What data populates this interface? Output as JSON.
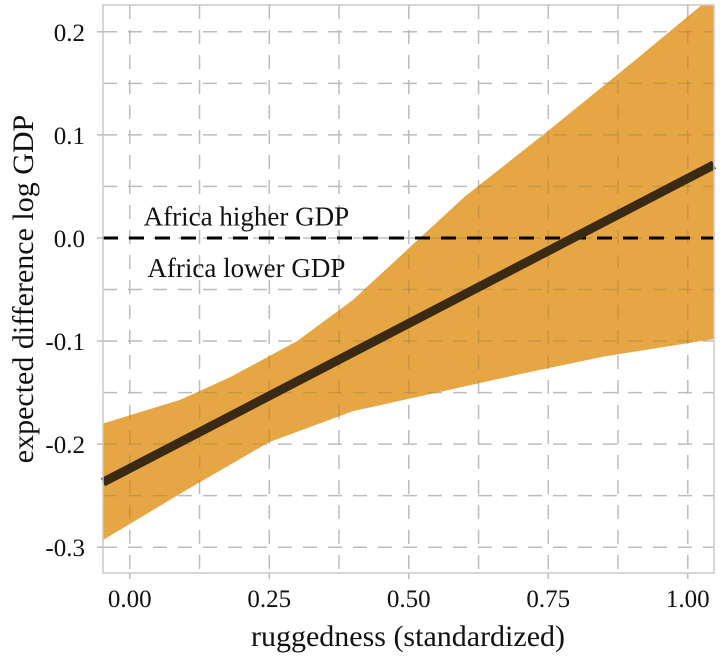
{
  "chart_data": {
    "type": "area",
    "title": "",
    "xlabel": "ruggedness (standardized)",
    "ylabel": "expected difference log GDP",
    "xlim": [
      -0.048,
      1.047
    ],
    "ylim": [
      -0.325,
      0.226
    ],
    "xticks": [
      0,
      0.25,
      0.5,
      0.75,
      1.0
    ],
    "xtick_labels": [
      "0.00",
      "0.25",
      "0.50",
      "0.75",
      "1.00"
    ],
    "yticks": [
      0.2,
      0.1,
      0.0,
      -0.1,
      -0.2,
      -0.3
    ],
    "ytick_labels": [
      "0.2",
      "0.1",
      "0.0",
      "-0.1",
      "-0.2",
      "-0.3"
    ],
    "grid": true,
    "series": [
      {
        "name": "mean",
        "type": "line",
        "color": "#3a2a14",
        "x": [
          -0.048,
          1.047
        ],
        "y": [
          -0.237,
          0.071
        ]
      },
      {
        "name": "interval",
        "type": "band",
        "color": "#e5a13a",
        "upper": {
          "x": [
            -0.048,
            0.09,
            0.18,
            0.3,
            0.4,
            0.5,
            0.6,
            0.75,
            0.9,
            1.025,
            1.047
          ],
          "y": [
            -0.18,
            -0.157,
            -0.135,
            -0.1,
            -0.06,
            -0.01,
            0.04,
            0.104,
            0.17,
            0.226,
            0.226
          ]
        },
        "lower": {
          "x": [
            -0.048,
            0.1,
            0.25,
            0.4,
            0.55,
            0.7,
            0.85,
            1.047
          ],
          "y": [
            -0.293,
            -0.245,
            -0.198,
            -0.168,
            -0.15,
            -0.132,
            -0.115,
            -0.098
          ]
        }
      }
    ],
    "reference_line": {
      "y": 0.0,
      "style": "dashed",
      "color": "#000000"
    },
    "annotations": [
      {
        "text": "Africa higher GDP",
        "x": 0.2,
        "y": 0.022
      },
      {
        "text": "Africa lower GDP",
        "x": 0.2,
        "y": -0.028
      }
    ]
  }
}
